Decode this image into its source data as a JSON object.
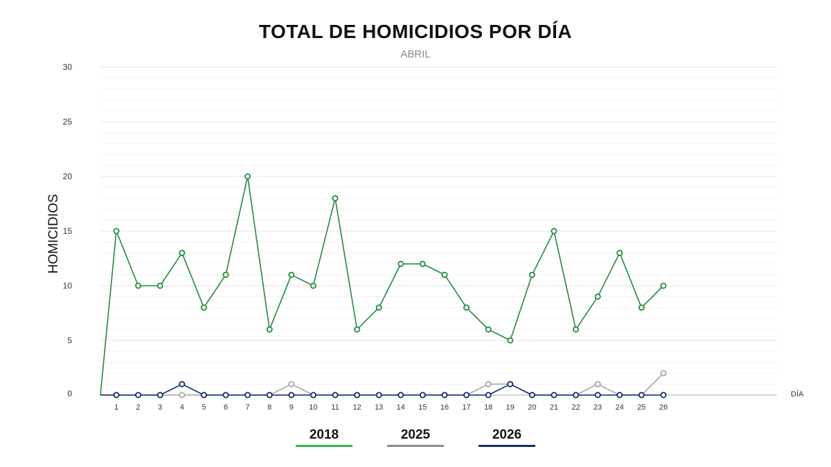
{
  "chart_data": {
    "type": "line",
    "title": "TOTAL DE HOMICIDIOS POR DÍA",
    "subtitle": "ABRIL",
    "ylabel": "HOMICIDIOS",
    "xlabel": "DÍA",
    "ylim": [
      0,
      30
    ],
    "yticks": [
      0,
      5,
      10,
      15,
      20,
      25,
      30
    ],
    "xlim": [
      0.4,
      31
    ],
    "categories": [
      1,
      2,
      3,
      4,
      5,
      6,
      7,
      8,
      9,
      10,
      11,
      12,
      13,
      14,
      15,
      16,
      17,
      18,
      19,
      20,
      21,
      22,
      23,
      24,
      25,
      26
    ],
    "series": [
      {
        "name": "2018",
        "color": "#1e8a3c",
        "legend_color": "#37b34a",
        "values": [
          15,
          10,
          10,
          13,
          8,
          11,
          20,
          6,
          11,
          10,
          18,
          6,
          8,
          12,
          12,
          11,
          8,
          6,
          5,
          11,
          15,
          6,
          9,
          13,
          8,
          10
        ]
      },
      {
        "name": "2025",
        "color": "#a6a6a6",
        "legend_color": "#8c8c8c",
        "values": [
          0,
          0,
          0,
          0,
          0,
          0,
          0,
          0,
          1,
          0,
          0,
          0,
          0,
          0,
          0,
          0,
          0,
          1,
          1,
          0,
          0,
          0,
          1,
          0,
          0,
          2
        ]
      },
      {
        "name": "2026",
        "color": "#0d2a6b",
        "legend_color": "#0d2a6b",
        "values": [
          0,
          0,
          0,
          1,
          0,
          0,
          0,
          0,
          0,
          0,
          0,
          0,
          0,
          0,
          0,
          0,
          0,
          0,
          1,
          0,
          0,
          0,
          0,
          0,
          0,
          0
        ]
      }
    ],
    "legend_position": "bottom-center",
    "grid": true
  }
}
